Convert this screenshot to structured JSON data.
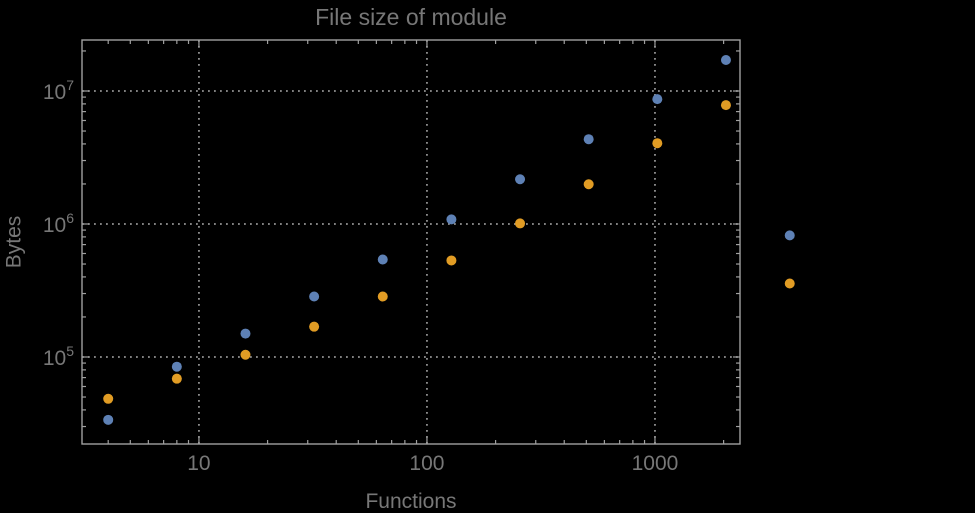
{
  "chart_data": {
    "type": "scatter",
    "title": "File size of module",
    "xlabel": "Functions",
    "ylabel": "Bytes",
    "x_scale": "log",
    "y_scale": "log",
    "xlim": [
      3.07,
      2360
    ],
    "ylim": [
      22170,
      24180000
    ],
    "grid": "dotted lines at major ticks only",
    "legend": "none",
    "x": [
      4,
      8,
      16,
      32,
      64,
      128,
      256,
      512,
      1024,
      2048,
      3900
    ],
    "series": [
      {
        "name": "series-1",
        "color": "#5e81b5",
        "values": [
          33700,
          84500,
          150000,
          285000,
          541000,
          1083000,
          2170000,
          4340000,
          8690000,
          17100000,
          821000
        ]
      },
      {
        "name": "series-2",
        "color": "#e19c24",
        "values": [
          48500,
          68700,
          104000,
          169000,
          285000,
          532000,
          1010000,
          1990000,
          4050000,
          7830000,
          357000
        ]
      }
    ],
    "x_ticks": [
      {
        "value": 10,
        "label": "10"
      },
      {
        "value": 100,
        "label": "100"
      },
      {
        "value": 1000,
        "label": "1000"
      }
    ],
    "y_ticks": [
      {
        "value": 100000,
        "base": "10",
        "exp": "5"
      },
      {
        "value": 1000000,
        "base": "10",
        "exp": "6"
      },
      {
        "value": 10000000,
        "base": "10",
        "exp": "7"
      }
    ],
    "colors": {
      "background": "#000000",
      "frame": "#a0a0a0",
      "grid": "#929292",
      "text": "#777777",
      "series1": "#5e81b5",
      "series2": "#e19c24"
    },
    "marker": {
      "shape": "circle",
      "radius_px": 5
    }
  }
}
